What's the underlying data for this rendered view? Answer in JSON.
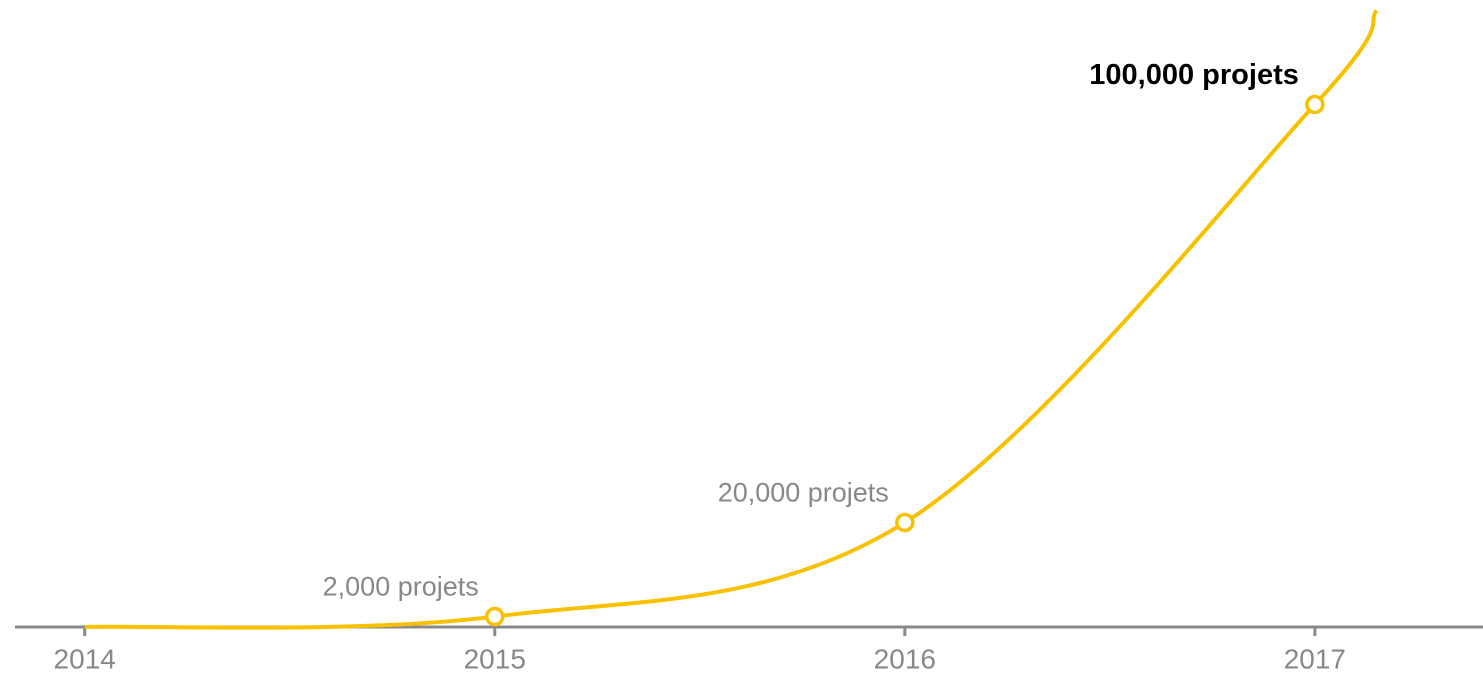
{
  "chart_data": {
    "type": "line",
    "x": [
      2014,
      2015,
      2016,
      2017,
      2017.15
    ],
    "values": [
      0,
      2000,
      20000,
      100000,
      118000
    ],
    "value_labels": [
      null,
      "2,000 projets",
      "20,000 projets",
      "100,000 projets",
      null
    ],
    "highlight_label": 3,
    "color": "#f7c100",
    "xlim": [
      2013.83,
      2017.41
    ],
    "xticks": [
      2014,
      2015,
      2016,
      2017
    ],
    "ylim": [
      0,
      120000
    ]
  }
}
